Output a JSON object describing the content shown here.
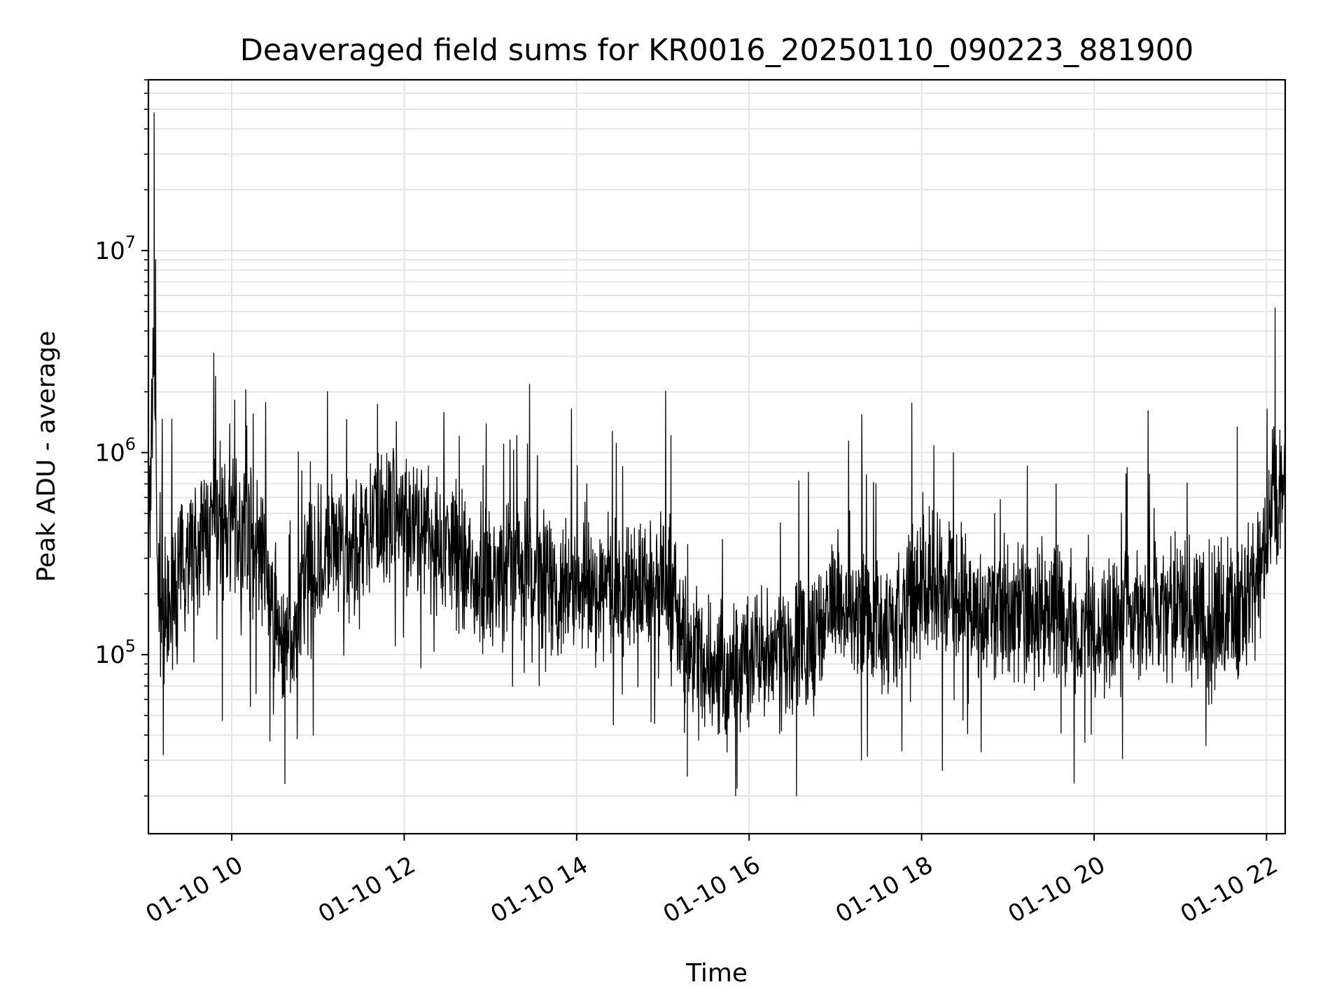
{
  "chart_data": {
    "type": "line",
    "title": "Deaveraged field sums for KR0016_20250110_090223_881900",
    "xlabel": "Time",
    "ylabel": "Peak ADU - average",
    "x_range": [
      "2025-01-10T09:02",
      "2025-01-10T22:13"
    ],
    "y_scale": "log",
    "y_range": [
      13000,
      70000000
    ],
    "grid": true,
    "line_color": "#000000",
    "x_ticks": [
      {
        "value": "2025-01-10T10:00",
        "label": "01-10 10"
      },
      {
        "value": "2025-01-10T12:00",
        "label": "01-10 12"
      },
      {
        "value": "2025-01-10T14:00",
        "label": "01-10 14"
      },
      {
        "value": "2025-01-10T16:00",
        "label": "01-10 16"
      },
      {
        "value": "2025-01-10T18:00",
        "label": "01-10 18"
      },
      {
        "value": "2025-01-10T20:00",
        "label": "01-10 20"
      },
      {
        "value": "2025-01-10T22:00",
        "label": "01-10 22"
      }
    ],
    "y_ticks": [
      {
        "value": 100000,
        "base": "10",
        "exp": "5"
      },
      {
        "value": 1000000,
        "base": "10",
        "exp": "6"
      },
      {
        "value": 10000000,
        "base": "10",
        "exp": "7"
      }
    ],
    "series": [
      {
        "x": [
          "09:02",
          "09:04",
          "09:06",
          "09:08",
          "09:10",
          "09:15",
          "09:20",
          "09:30",
          "09:40",
          "09:50",
          "10:00",
          "10:10",
          "10:20",
          "10:30",
          "10:40",
          "10:50",
          "11:00",
          "11:10",
          "11:20",
          "11:30",
          "11:40",
          "11:50",
          "12:00",
          "12:15",
          "12:30",
          "12:45",
          "13:00",
          "13:15",
          "13:30",
          "13:45",
          "14:00",
          "14:15",
          "14:30",
          "14:45",
          "15:00",
          "15:15",
          "15:30",
          "15:45",
          "16:00",
          "16:15",
          "16:30",
          "16:45",
          "17:00",
          "17:15",
          "17:30",
          "17:45",
          "18:00",
          "18:15",
          "18:30",
          "18:45",
          "19:00",
          "19:15",
          "19:30",
          "19:45",
          "20:00",
          "20:15",
          "20:30",
          "20:45",
          "21:00",
          "21:15",
          "21:30",
          "21:45",
          "22:00",
          "22:05",
          "22:10",
          "22:13"
        ],
        "y": [
          500000,
          900000,
          4800000,
          300000,
          180000,
          150000,
          200000,
          350000,
          380000,
          420000,
          450000,
          400000,
          320000,
          160000,
          90000,
          200000,
          300000,
          350000,
          300000,
          380000,
          520000,
          480000,
          450000,
          400000,
          350000,
          270000,
          220000,
          300000,
          240000,
          200000,
          230000,
          210000,
          220000,
          210000,
          230000,
          120000,
          90000,
          80000,
          90000,
          100000,
          110000,
          120000,
          190000,
          160000,
          140000,
          150000,
          220000,
          230000,
          190000,
          170000,
          160000,
          150000,
          170000,
          150000,
          140000,
          160000,
          150000,
          160000,
          170000,
          160000,
          150000,
          180000,
          300000,
          650000,
          550000,
          500000
        ]
      }
    ],
    "extremes": [
      {
        "x": "09:06",
        "y": 48000000
      },
      {
        "x": "09:07",
        "y": 9000000
      },
      {
        "x": "22:06",
        "y": 5200000
      },
      {
        "x": "10:37",
        "y": 23000
      },
      {
        "x": "16:33",
        "y": 20000
      },
      {
        "x": "15:17",
        "y": 25000
      }
    ]
  }
}
